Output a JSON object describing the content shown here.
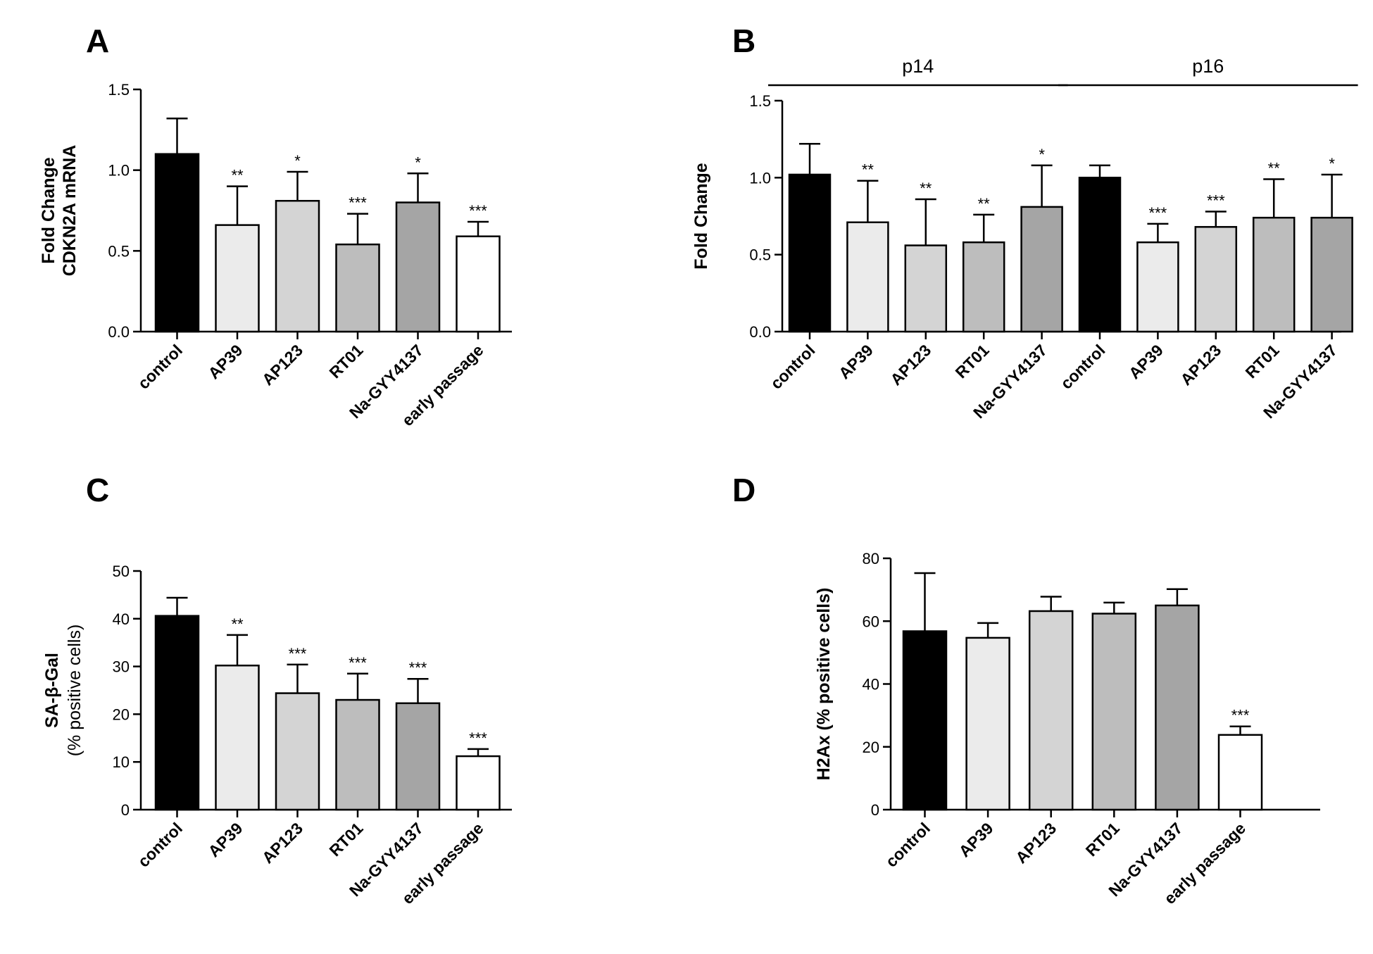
{
  "figure": {
    "panels": [
      {
        "id": "A",
        "letter": "A"
      },
      {
        "id": "B",
        "letter": "B"
      },
      {
        "id": "C",
        "letter": "C"
      },
      {
        "id": "D",
        "letter": "D"
      }
    ]
  },
  "chart_data": [
    {
      "panel": "A",
      "type": "bar",
      "title": "",
      "ylabel": [
        "Fold Change",
        "CDKN2A mRNA"
      ],
      "ylim": [
        0,
        1.5
      ],
      "yticks": [
        "0.0",
        "0.5",
        "1.0",
        "1.5"
      ],
      "ytick_values": [
        0,
        0.5,
        1.0,
        1.5
      ],
      "categories": [
        "control",
        "AP39",
        "AP123",
        "RT01",
        "Na-GYY4137",
        "early passage"
      ],
      "values": [
        1.1,
        0.66,
        0.81,
        0.54,
        0.8,
        0.59
      ],
      "errors": [
        0.22,
        0.24,
        0.18,
        0.19,
        0.18,
        0.09
      ],
      "significance": [
        "",
        "**",
        "*",
        "***",
        "*",
        "***"
      ],
      "colors": [
        "#000000",
        "#ebebeb",
        "#d4d4d4",
        "#bdbdbd",
        "#a5a5a5",
        "#ffffff"
      ],
      "grid": false,
      "legend": "none"
    },
    {
      "panel": "B",
      "type": "bar",
      "title": "",
      "ylabel": [
        "Fold Change"
      ],
      "ylim": [
        0,
        1.5
      ],
      "yticks": [
        "0.0",
        "0.5",
        "1.0",
        "1.5"
      ],
      "ytick_values": [
        0,
        0.5,
        1.0,
        1.5
      ],
      "groups": [
        {
          "label": "p14",
          "start": 0,
          "end": 4
        },
        {
          "label": "p16",
          "start": 5,
          "end": 9
        }
      ],
      "categories": [
        "control",
        "AP39",
        "AP123",
        "RT01",
        "Na-GYY4137",
        "control",
        "AP39",
        "AP123",
        "RT01",
        "Na-GYY4137"
      ],
      "values": [
        1.02,
        0.71,
        0.56,
        0.58,
        0.81,
        1.0,
        0.58,
        0.68,
        0.74,
        0.74
      ],
      "errors": [
        0.2,
        0.27,
        0.3,
        0.18,
        0.27,
        0.08,
        0.12,
        0.1,
        0.25,
        0.28
      ],
      "significance": [
        "",
        "**",
        "**",
        "**",
        "*",
        "",
        "***",
        "***",
        "**",
        "*"
      ],
      "colors": [
        "#000000",
        "#ebebeb",
        "#d4d4d4",
        "#bdbdbd",
        "#a5a5a5",
        "#000000",
        "#ebebeb",
        "#d4d4d4",
        "#bdbdbd",
        "#a5a5a5"
      ],
      "grid": false,
      "legend": "none"
    },
    {
      "panel": "C",
      "type": "bar",
      "title": "",
      "ylabel": [
        "SA-β-Gal",
        "(% positive cells)"
      ],
      "ylim": [
        0,
        50
      ],
      "yticks": [
        "0",
        "10",
        "20",
        "30",
        "40",
        "50"
      ],
      "ytick_values": [
        0,
        10,
        20,
        30,
        40,
        50
      ],
      "categories": [
        "control",
        "AP39",
        "AP123",
        "RT01",
        "Na-GYY4137",
        "early passage"
      ],
      "values": [
        40.6,
        30.2,
        24.4,
        23.0,
        22.3,
        11.2
      ],
      "errors": [
        3.8,
        6.4,
        6.0,
        5.5,
        5.1,
        1.5
      ],
      "significance": [
        "",
        "**",
        "***",
        "***",
        "***",
        "***"
      ],
      "colors": [
        "#000000",
        "#ebebeb",
        "#d4d4d4",
        "#bdbdbd",
        "#a5a5a5",
        "#ffffff"
      ],
      "grid": false,
      "legend": "none"
    },
    {
      "panel": "D",
      "type": "bar",
      "title": "",
      "ylabel": [
        "H2Ax (% positive cells)"
      ],
      "ylim": [
        0,
        80
      ],
      "yticks": [
        "0",
        "20",
        "40",
        "60",
        "80"
      ],
      "ytick_values": [
        0,
        20,
        40,
        60,
        80
      ],
      "categories": [
        "control",
        "AP39",
        "AP123",
        "RT01",
        "Na-GYY4137",
        "early passage"
      ],
      "values": [
        56.8,
        54.7,
        63.2,
        62.4,
        65.0,
        23.8
      ],
      "errors": [
        18.5,
        4.7,
        4.6,
        3.5,
        5.2,
        2.7
      ],
      "significance": [
        "",
        "",
        "",
        "",
        "",
        "***"
      ],
      "colors": [
        "#000000",
        "#ebebeb",
        "#d4d4d4",
        "#bdbdbd",
        "#a5a5a5",
        "#ffffff"
      ],
      "grid": false,
      "legend": "none"
    }
  ]
}
